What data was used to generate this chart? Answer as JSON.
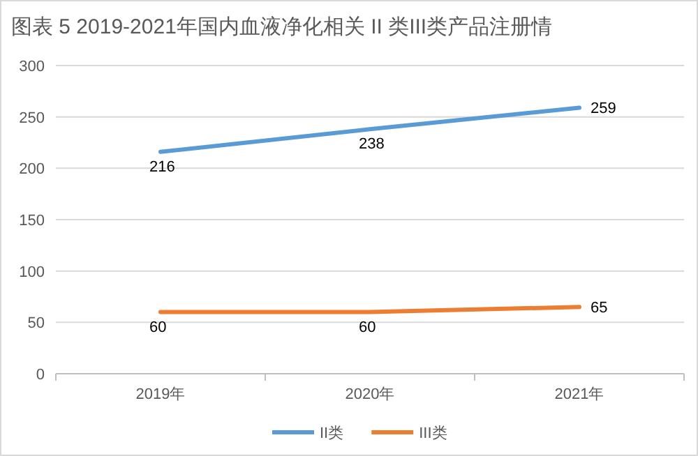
{
  "chart_data": {
    "type": "line",
    "title": "图表 5 2019-2021年国内血液净化相关 II 类III类产品注册情",
    "categories": [
      "2019年",
      "2020年",
      "2021年"
    ],
    "series": [
      {
        "name": "II类",
        "color": "#5b9bd5",
        "values": [
          216,
          238,
          259
        ]
      },
      {
        "name": "III类",
        "color": "#ed7d31",
        "values": [
          60,
          60,
          65
        ]
      }
    ],
    "ylim": [
      0,
      300
    ],
    "yticks": [
      0,
      50,
      100,
      150,
      200,
      250,
      300
    ],
    "grid": "y",
    "legend": "bottom",
    "data_labels": true,
    "marker": "none",
    "line_style": "solid"
  }
}
